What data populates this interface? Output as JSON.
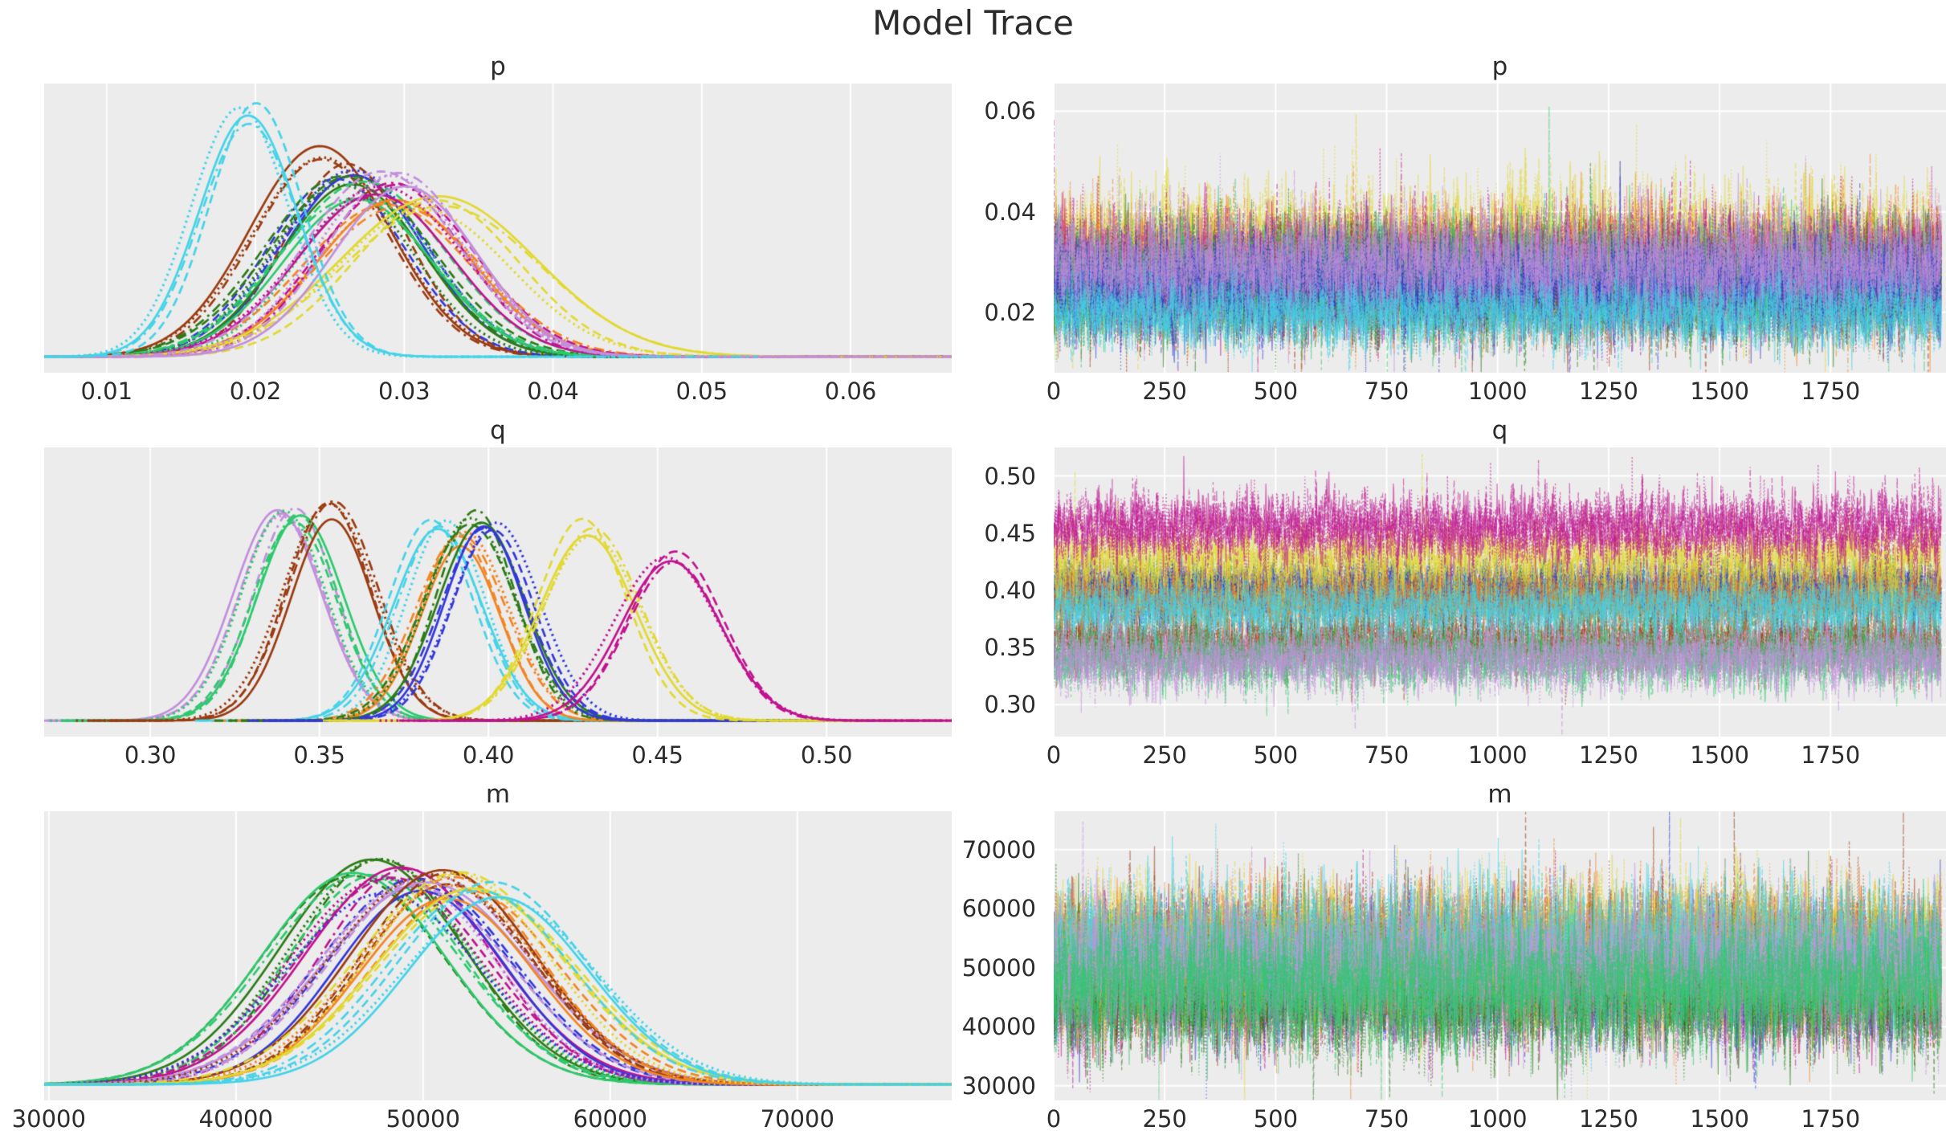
{
  "figure_title": "Model Trace",
  "style": {
    "page_bg": "#ffffff",
    "plot_bg": "#ececec",
    "grid_color": "#ffffff",
    "text_color": "#2b2b2b"
  },
  "colors": {
    "cyan": "#44d3e8",
    "brown": "#9a3b10",
    "blue": "#3338d9",
    "dark_green": "#2c7c16",
    "green": "#2cc96d",
    "magenta": "#c01390",
    "plum": "#c38fdc",
    "yellow": "#e2d92f",
    "orange": "#f28522"
  },
  "chart_data": [
    {
      "id": "p-density",
      "type": "kde",
      "title": "p",
      "legend": false,
      "grid": "x",
      "xlim": [
        0.0058,
        0.0668
      ],
      "xticks": [
        0.01,
        0.02,
        0.03,
        0.04,
        0.05,
        0.06
      ],
      "xtick_labels": [
        "0.01",
        "0.02",
        "0.03",
        "0.04",
        "0.05",
        "0.06"
      ],
      "chains": 4,
      "linestyles": [
        "solid",
        "dashed",
        "dotted",
        "dashdot"
      ],
      "series": [
        {
          "name": "brown",
          "color": "brown",
          "mean": 0.0252,
          "std": 0.0045,
          "peak": 0.8
        },
        {
          "name": "blue",
          "color": "blue",
          "mean": 0.0256,
          "std": 0.0046,
          "peak": 0.74
        },
        {
          "name": "dark_green",
          "color": "dark_green",
          "mean": 0.0262,
          "std": 0.005,
          "peak": 0.68
        },
        {
          "name": "green",
          "color": "green",
          "mean": 0.027,
          "std": 0.005,
          "peak": 0.66
        },
        {
          "name": "orange",
          "color": "orange",
          "mean": 0.0288,
          "std": 0.0055,
          "peak": 0.62
        },
        {
          "name": "magenta",
          "color": "magenta",
          "mean": 0.0285,
          "std": 0.005,
          "peak": 0.67
        },
        {
          "name": "yellow",
          "color": "yellow",
          "mean": 0.032,
          "std": 0.006,
          "peak": 0.61
        },
        {
          "name": "plum",
          "color": "plum",
          "mean": 0.029,
          "std": 0.005,
          "peak": 0.7
        },
        {
          "name": "cyan",
          "color": "cyan",
          "mean": 0.0196,
          "std": 0.003,
          "peak": 0.97
        }
      ]
    },
    {
      "id": "p-trace",
      "type": "trace",
      "title": "p",
      "legend": false,
      "grid": "xy",
      "n_draws": 2000,
      "xlim": [
        0,
        2010
      ],
      "xticks": [
        0,
        250,
        500,
        750,
        1000,
        1250,
        1500,
        1750
      ],
      "xtick_labels": [
        "0",
        "250",
        "500",
        "750",
        "1000",
        "1250",
        "1500",
        "1750"
      ],
      "ylim": [
        0.008,
        0.0655
      ],
      "yticks": [
        0.02,
        0.04,
        0.06
      ],
      "ytick_labels": [
        "0.02",
        "0.04",
        "0.06"
      ],
      "chains": 4,
      "linestyles": [
        "solid",
        "dashed",
        "dotted",
        "dashdot"
      ],
      "series": [
        {
          "name": "yellow",
          "color": "yellow",
          "mean": 0.032,
          "std": 0.006
        },
        {
          "name": "orange",
          "color": "orange",
          "mean": 0.0288,
          "std": 0.0055
        },
        {
          "name": "brown",
          "color": "brown",
          "mean": 0.0252,
          "std": 0.0045
        },
        {
          "name": "dark_green",
          "color": "dark_green",
          "mean": 0.0262,
          "std": 0.005
        },
        {
          "name": "magenta",
          "color": "magenta",
          "mean": 0.0285,
          "std": 0.005
        },
        {
          "name": "green",
          "color": "green",
          "mean": 0.027,
          "std": 0.005
        },
        {
          "name": "blue",
          "color": "blue",
          "mean": 0.0256,
          "std": 0.0046
        },
        {
          "name": "plum",
          "color": "plum",
          "mean": 0.029,
          "std": 0.005
        },
        {
          "name": "cyan",
          "color": "cyan",
          "mean": 0.0196,
          "std": 0.003
        }
      ]
    },
    {
      "id": "q-density",
      "type": "kde",
      "title": "q",
      "legend": false,
      "grid": "x",
      "xlim": [
        0.2686,
        0.537
      ],
      "xticks": [
        0.3,
        0.35,
        0.4,
        0.45,
        0.5
      ],
      "xtick_labels": [
        "0.30",
        "0.35",
        "0.40",
        "0.45",
        "0.50"
      ],
      "chains": 4,
      "linestyles": [
        "solid",
        "dashed",
        "dotted",
        "dashdot"
      ],
      "series": [
        {
          "name": "plum",
          "color": "plum",
          "mean": 0.34,
          "std": 0.0125,
          "peak": 0.86
        },
        {
          "name": "green",
          "color": "green",
          "mean": 0.342,
          "std": 0.0125,
          "peak": 0.83
        },
        {
          "name": "brown",
          "color": "brown",
          "mean": 0.355,
          "std": 0.0125,
          "peak": 0.84
        },
        {
          "name": "cyan",
          "color": "cyan",
          "mean": 0.385,
          "std": 0.0125,
          "peak": 0.76
        },
        {
          "name": "orange",
          "color": "orange",
          "mean": 0.394,
          "std": 0.0125,
          "peak": 0.73
        },
        {
          "name": "dark_green",
          "color": "dark_green",
          "mean": 0.397,
          "std": 0.0125,
          "peak": 0.81
        },
        {
          "name": "blue",
          "color": "blue",
          "mean": 0.401,
          "std": 0.0125,
          "peak": 0.75
        },
        {
          "name": "yellow",
          "color": "yellow",
          "mean": 0.429,
          "std": 0.0135,
          "peak": 0.76
        },
        {
          "name": "magenta",
          "color": "magenta",
          "mean": 0.455,
          "std": 0.0145,
          "peak": 0.64
        }
      ]
    },
    {
      "id": "q-trace",
      "type": "trace",
      "title": "q",
      "legend": false,
      "grid": "xy",
      "n_draws": 2000,
      "xlim": [
        0,
        2010
      ],
      "xticks": [
        0,
        250,
        500,
        750,
        1000,
        1250,
        1500,
        1750
      ],
      "xtick_labels": [
        "0",
        "250",
        "500",
        "750",
        "1000",
        "1250",
        "1500",
        "1750"
      ],
      "ylim": [
        0.272,
        0.525
      ],
      "yticks": [
        0.3,
        0.35,
        0.4,
        0.45,
        0.5
      ],
      "ytick_labels": [
        "0.30",
        "0.35",
        "0.40",
        "0.45",
        "0.50"
      ],
      "chains": 4,
      "linestyles": [
        "solid",
        "dashed",
        "dotted",
        "dashdot"
      ],
      "series": [
        {
          "name": "brown",
          "color": "brown",
          "mean": 0.355,
          "std": 0.0125
        },
        {
          "name": "dark_green",
          "color": "dark_green",
          "mean": 0.397,
          "std": 0.0125
        },
        {
          "name": "blue",
          "color": "blue",
          "mean": 0.401,
          "std": 0.0125
        },
        {
          "name": "orange",
          "color": "orange",
          "mean": 0.394,
          "std": 0.0125
        },
        {
          "name": "green",
          "color": "green",
          "mean": 0.342,
          "std": 0.0125
        },
        {
          "name": "cyan",
          "color": "cyan",
          "mean": 0.385,
          "std": 0.0125
        },
        {
          "name": "yellow",
          "color": "yellow",
          "mean": 0.429,
          "std": 0.0135
        },
        {
          "name": "magenta",
          "color": "magenta",
          "mean": 0.455,
          "std": 0.0145
        },
        {
          "name": "plum",
          "color": "plum",
          "mean": 0.34,
          "std": 0.0125
        }
      ]
    },
    {
      "id": "m-density",
      "type": "kde",
      "title": "m",
      "legend": false,
      "grid": "x",
      "xlim": [
        29750,
        78250
      ],
      "xticks": [
        30000,
        40000,
        50000,
        60000,
        70000
      ],
      "xtick_labels": [
        "30000",
        "40000",
        "50000",
        "60000",
        "70000"
      ],
      "chains": 4,
      "linestyles": [
        "solid",
        "dashed",
        "dotted",
        "dashdot"
      ],
      "series": [
        {
          "name": "dark_green",
          "color": "dark_green",
          "mean": 46800,
          "std": 4900,
          "peak": 0.87
        },
        {
          "name": "green",
          "color": "green",
          "mean": 47200,
          "std": 4800,
          "peak": 0.84
        },
        {
          "name": "magenta",
          "color": "magenta",
          "mean": 48200,
          "std": 4900,
          "peak": 0.82
        },
        {
          "name": "blue",
          "color": "blue",
          "mean": 48800,
          "std": 4900,
          "peak": 0.8
        },
        {
          "name": "plum",
          "color": "plum",
          "mean": 49800,
          "std": 5000,
          "peak": 0.8
        },
        {
          "name": "brown",
          "color": "brown",
          "mean": 51200,
          "std": 5000,
          "peak": 0.82
        },
        {
          "name": "orange",
          "color": "orange",
          "mean": 51800,
          "std": 5000,
          "peak": 0.78
        },
        {
          "name": "yellow",
          "color": "yellow",
          "mean": 52600,
          "std": 5100,
          "peak": 0.8
        },
        {
          "name": "cyan",
          "color": "cyan",
          "mean": 53200,
          "std": 5000,
          "peak": 0.78
        }
      ]
    },
    {
      "id": "m-trace",
      "type": "trace",
      "title": "m",
      "legend": false,
      "grid": "xy",
      "n_draws": 2000,
      "xlim": [
        0,
        2010
      ],
      "xticks": [
        0,
        250,
        500,
        750,
        1000,
        1250,
        1500,
        1750
      ],
      "xtick_labels": [
        "0",
        "250",
        "500",
        "750",
        "1000",
        "1250",
        "1500",
        "1750"
      ],
      "ylim": [
        27500,
        76500
      ],
      "yticks": [
        30000,
        40000,
        50000,
        60000,
        70000
      ],
      "ytick_labels": [
        "30000",
        "40000",
        "50000",
        "60000",
        "70000"
      ],
      "chains": 4,
      "linestyles": [
        "solid",
        "dashed",
        "dotted",
        "dashdot"
      ],
      "series": [
        {
          "name": "magenta",
          "color": "magenta",
          "mean": 48200,
          "std": 4900
        },
        {
          "name": "blue",
          "color": "blue",
          "mean": 48800,
          "std": 4900
        },
        {
          "name": "brown",
          "color": "brown",
          "mean": 51200,
          "std": 5000
        },
        {
          "name": "orange",
          "color": "orange",
          "mean": 51800,
          "std": 5000
        },
        {
          "name": "dark_green",
          "color": "dark_green",
          "mean": 46800,
          "std": 4900
        },
        {
          "name": "yellow",
          "color": "yellow",
          "mean": 52600,
          "std": 5100
        },
        {
          "name": "cyan",
          "color": "cyan",
          "mean": 53200,
          "std": 5000
        },
        {
          "name": "plum",
          "color": "plum",
          "mean": 49800,
          "std": 5000
        },
        {
          "name": "green",
          "color": "green",
          "mean": 47200,
          "std": 4800
        }
      ]
    }
  ]
}
